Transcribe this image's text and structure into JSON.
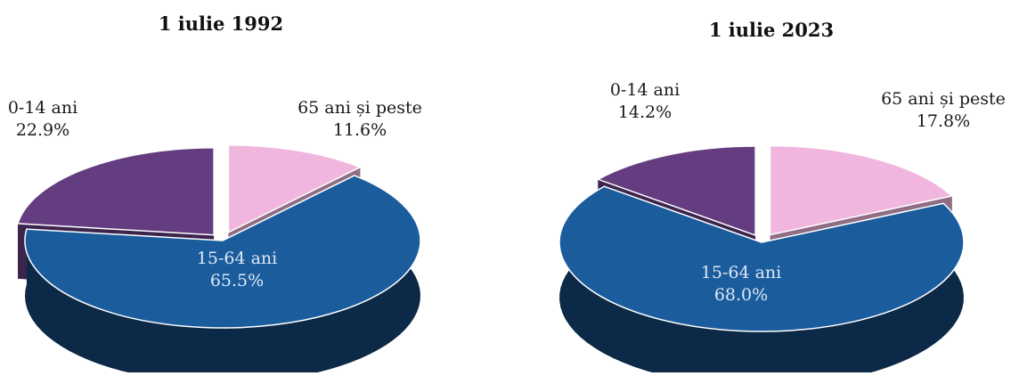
{
  "chart_data": [
    {
      "type": "pie",
      "title": "1 iulie 1992",
      "slices": [
        {
          "label": "15-64 ani",
          "value": 65.5,
          "value_label": "65.5%",
          "color": "#1b5c9d"
        },
        {
          "label": "0-14 ani",
          "value": 22.9,
          "value_label": "22.9%",
          "color": "#643c80"
        },
        {
          "label": "65 ani și peste",
          "value": 11.6,
          "value_label": "11.6%",
          "color": "#f0b6de"
        }
      ]
    },
    {
      "type": "pie",
      "title": "1 iulie 2023",
      "slices": [
        {
          "label": "15-64 ani",
          "value": 68.0,
          "value_label": "68.0%",
          "color": "#1b5c9d"
        },
        {
          "label": "0-14 ani",
          "value": 14.2,
          "value_label": "14.2%",
          "color": "#643c80"
        },
        {
          "label": "65 ani și peste",
          "value": 17.8,
          "value_label": "17.8%",
          "color": "#f0b6de"
        }
      ]
    }
  ]
}
